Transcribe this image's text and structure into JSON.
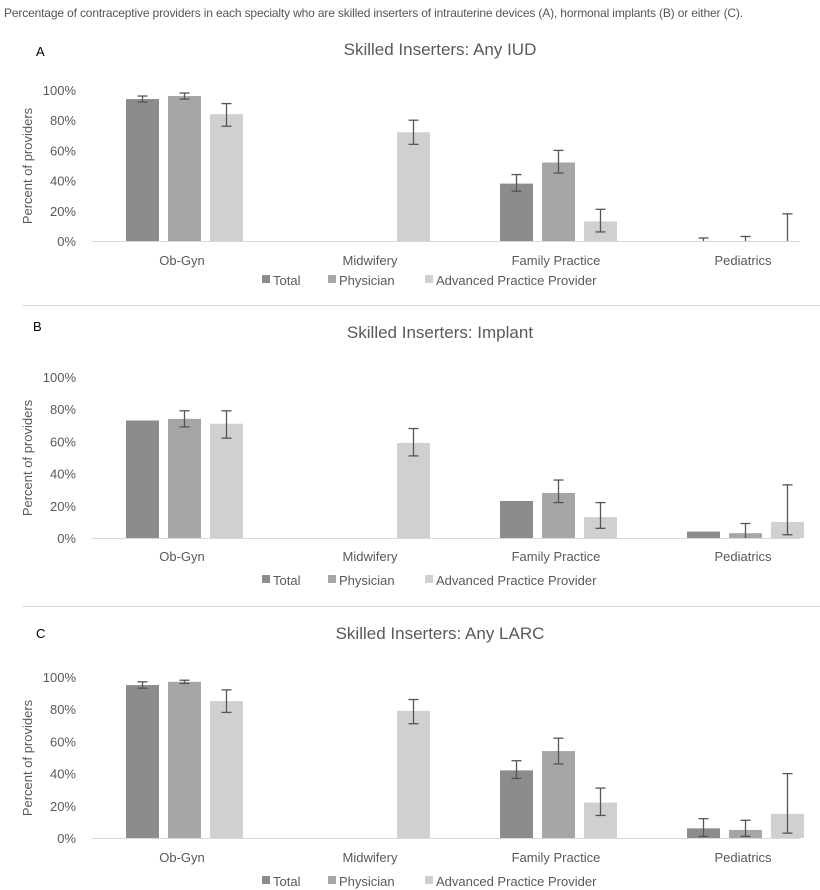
{
  "caption": "Percentage of contraceptive providers in each specialty who are skilled inserters of intrauterine devices (A), hormonal implants (B) or either (C).",
  "colors": {
    "Total": "#8c8c8c",
    "Physician": "#a6a6a6",
    "Advanced Practice Provider": "#d0d0d0",
    "error": "#555555",
    "axis_text": "#595959",
    "title_text": "#595959"
  },
  "legend": [
    "Total",
    "Physician",
    "Advanced Practice Provider"
  ],
  "chart_data": [
    {
      "panel": "A",
      "type": "bar",
      "title": "Skilled Inserters: Any IUD",
      "ylabel": "Percent of providers",
      "ylim": [
        0,
        100
      ],
      "yticks": [
        "0%",
        "20%",
        "40%",
        "60%",
        "80%",
        "100%"
      ],
      "categories": [
        "Ob-Gyn",
        "Midwifery",
        "Family Practice",
        "Pediatrics"
      ],
      "legend_position": "bottom",
      "series": [
        {
          "name": "Total",
          "values": [
            94,
            null,
            38,
            0
          ],
          "error": [
            [
              92,
              96
            ],
            null,
            [
              33,
              44
            ],
            [
              0,
              2
            ]
          ]
        },
        {
          "name": "Physician",
          "values": [
            96,
            null,
            52,
            0
          ],
          "error": [
            [
              94,
              98
            ],
            null,
            [
              45,
              60
            ],
            [
              0,
              3
            ]
          ]
        },
        {
          "name": "Advanced Practice Provider",
          "values": [
            84,
            72,
            13,
            0
          ],
          "error": [
            [
              76,
              91
            ],
            [
              64,
              80
            ],
            [
              6,
              21
            ],
            [
              0,
              18
            ]
          ]
        }
      ]
    },
    {
      "panel": "B",
      "type": "bar",
      "title": "Skilled Inserters: Implant",
      "ylabel": "Percent of providers",
      "ylim": [
        0,
        100
      ],
      "yticks": [
        "0%",
        "20%",
        "40%",
        "60%",
        "80%",
        "100%"
      ],
      "categories": [
        "Ob-Gyn",
        "Midwifery",
        "Family Practice",
        "Pediatrics"
      ],
      "legend_position": "bottom",
      "series": [
        {
          "name": "Total",
          "values": [
            73,
            null,
            23,
            4
          ],
          "error": [
            null,
            null,
            null,
            null
          ]
        },
        {
          "name": "Physician",
          "values": [
            74,
            null,
            28,
            3
          ],
          "error": [
            [
              69,
              79
            ],
            null,
            [
              22,
              36
            ],
            [
              0,
              9
            ]
          ]
        },
        {
          "name": "Advanced Practice Provider",
          "values": [
            71,
            59,
            13,
            10
          ],
          "error": [
            [
              62,
              79
            ],
            [
              51,
              68
            ],
            [
              6,
              22
            ],
            [
              2,
              33
            ]
          ]
        }
      ]
    },
    {
      "panel": "C",
      "type": "bar",
      "title": "Skilled Inserters: Any LARC",
      "ylabel": "Percent of providers",
      "ylim": [
        0,
        100
      ],
      "yticks": [
        "0%",
        "20%",
        "40%",
        "60%",
        "80%",
        "100%"
      ],
      "categories": [
        "Ob-Gyn",
        "Midwifery",
        "Family Practice",
        "Pediatrics"
      ],
      "legend_position": "bottom",
      "series": [
        {
          "name": "Total",
          "values": [
            95,
            null,
            42,
            6
          ],
          "error": [
            [
              93,
              97
            ],
            null,
            [
              37,
              48
            ],
            [
              1,
              12
            ]
          ]
        },
        {
          "name": "Physician",
          "values": [
            97,
            null,
            54,
            5
          ],
          "error": [
            [
              96,
              98
            ],
            null,
            [
              46,
              62
            ],
            [
              1,
              11
            ]
          ]
        },
        {
          "name": "Advanced Practice Provider",
          "values": [
            85,
            79,
            22,
            15
          ],
          "error": [
            [
              78,
              92
            ],
            [
              71,
              86
            ],
            [
              14,
              31
            ],
            [
              3,
              40
            ]
          ]
        }
      ]
    }
  ]
}
